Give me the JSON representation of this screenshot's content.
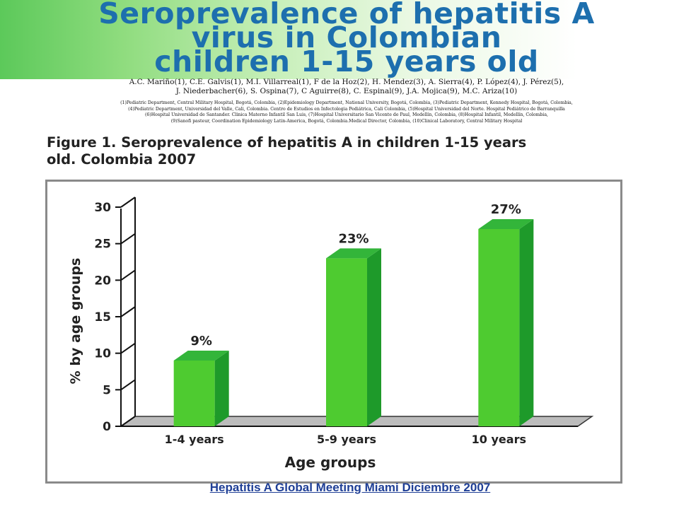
{
  "header": {
    "title_lines": [
      "Seroprevalence of hepatitis A",
      "virus in Colombian",
      "children 1-15 years old"
    ],
    "authors_lines": [
      "A.C. Mariño(1), C.E. Galvis(1), M.I. Villarreal(1), F de la Hoz(2), H. Mendez(3), A. Sierra(4), P. López(4), J. Pérez(5),",
      "J. Niederbacher(6), S. Ospina(7), C Aguirre(8), C. Espinal(9), J.A. Mojica(9), M.C. Ariza(10)"
    ],
    "affiliation_lines": [
      "(1)Pediatric Department, Central Military Hospital, Bogotá, Colombia, (2)Epidemiology Department, National University, Bogotá, Colombia, (3)Pediatric Department, Kennedy Hospital, Bogotá, Colombia,",
      "(4)Pediatric Department, Universidad del Valle, Cali, Colombia. Centro de Estudios en Infectologia Pediátrica, Cali Colombia, (5)Hospital Universidad del Norte. Hospital Pediátrico de Barranquilla",
      "(6)Hospital Universidad de Santander. Clinica Materno Infantil San Luis, (7)Hospital Universitario San Vicente de Paul, Medellín, Colombia, (8)Hospital Infantil, Medellín, Colombia,",
      "(9)Sanofi pasteur, Coordination Epidemiology Latin-America, Bogotá, Colombia.Medical Director, Colombia, (10)Clinical Laboratory, Central Military Hospital"
    ]
  },
  "figure": {
    "title_lines": [
      "Figure 1. Seroprevalence of hepatitis A in children 1-15  years",
      "old. Colombia 2007"
    ]
  },
  "chart_data": {
    "type": "bar",
    "categories": [
      "1-4 years",
      "5-9 years",
      "10 years"
    ],
    "values": [
      9,
      23,
      27
    ],
    "data_labels": [
      "9%",
      "23%",
      "27%"
    ],
    "xlabel": "Age groups",
    "ylabel": "% by age groups",
    "ylim": [
      0,
      30
    ],
    "yticks": [
      0,
      5,
      10,
      15,
      20,
      25,
      30
    ],
    "grid": false,
    "legend": "none",
    "style": "3d-column",
    "colors": {
      "bar_front": "#4ecb30",
      "bar_side": "#1e9a2a",
      "bar_top": "#33b53a",
      "floor": "#bcbcbc"
    }
  },
  "footer": {
    "text": "Hepatitis A Global Meeting Miami Diciembre 2007"
  }
}
